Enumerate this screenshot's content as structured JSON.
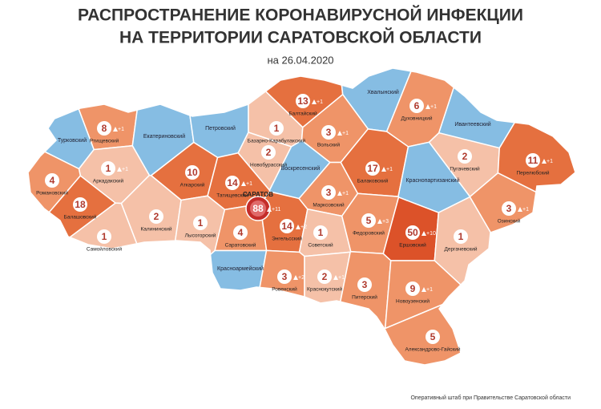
{
  "header": {
    "title": [
      "РАСПРОСТРАНЕНИЕ КОРОНАВИРУСНОЙ ИНФЕКЦИИ",
      "НА ТЕРРИТОРИИ САРАТОВСКОЙ ОБЛАСТИ"
    ],
    "date": "на 26.04.2020"
  },
  "districts": [
    {
      "name": "Балтайский",
      "count": 13,
      "delta": "+1"
    },
    {
      "name": "Хвалынский"
    },
    {
      "name": "Духовницкий",
      "count": 6,
      "delta": "+1"
    },
    {
      "name": "Ртищевский",
      "count": 8,
      "delta": "+1"
    },
    {
      "name": "Турковский"
    },
    {
      "name": "Екатериновский"
    },
    {
      "name": "Петровский"
    },
    {
      "name": "Базарно-Карабулакский",
      "count": 1
    },
    {
      "name": "Новобурасский",
      "count": 2
    },
    {
      "name": "Вольский",
      "count": 3,
      "delta": "+1"
    },
    {
      "name": "Ивантеевский"
    },
    {
      "name": "Пугачевский",
      "count": 2
    },
    {
      "name": "Перелюбский",
      "count": 11,
      "delta": "+1"
    },
    {
      "name": "Аркадакский",
      "count": 1,
      "delta": "+1"
    },
    {
      "name": "Аткарский",
      "count": 10
    },
    {
      "name": "Татищевский",
      "count": 14,
      "delta": "+1"
    },
    {
      "name": "Воскресенский"
    },
    {
      "name": "Балаковский",
      "count": 17,
      "delta": "+1"
    },
    {
      "name": "Краснопартизанский"
    },
    {
      "name": "Романовский",
      "count": 4
    },
    {
      "name": "Балашовский",
      "count": 18
    },
    {
      "name": "Калининский",
      "count": 2
    },
    {
      "name": "Лысогорский",
      "count": 1
    },
    {
      "name": "Саратовский",
      "count": 4
    },
    {
      "name": "САРАТОВ",
      "count": 88,
      "delta": "+11"
    },
    {
      "name": "Энгельсский",
      "count": 14,
      "delta": "+2"
    },
    {
      "name": "Марксовский",
      "count": 3,
      "delta": "+1"
    },
    {
      "name": "Советский",
      "count": 1
    },
    {
      "name": "Федоровский",
      "count": 5,
      "delta": "+3"
    },
    {
      "name": "Ершовский",
      "count": 50,
      "delta": "+10"
    },
    {
      "name": "Озинский",
      "count": 3,
      "delta": "+1"
    },
    {
      "name": "Дергачевский",
      "count": 1
    },
    {
      "name": "Самойловский",
      "count": 1
    },
    {
      "name": "Красноармейский"
    },
    {
      "name": "Ровенский",
      "count": 3,
      "delta": "+2"
    },
    {
      "name": "Краснокутский",
      "count": 2,
      "delta": "+1"
    },
    {
      "name": "Питерский",
      "count": 3
    },
    {
      "name": "Новоузенский",
      "count": 9,
      "delta": "+1"
    },
    {
      "name": "Александрово-Гайский",
      "count": 5
    }
  ],
  "footer": {
    "source": "Оперативный штаб при Правительстве Саратовской области"
  }
}
